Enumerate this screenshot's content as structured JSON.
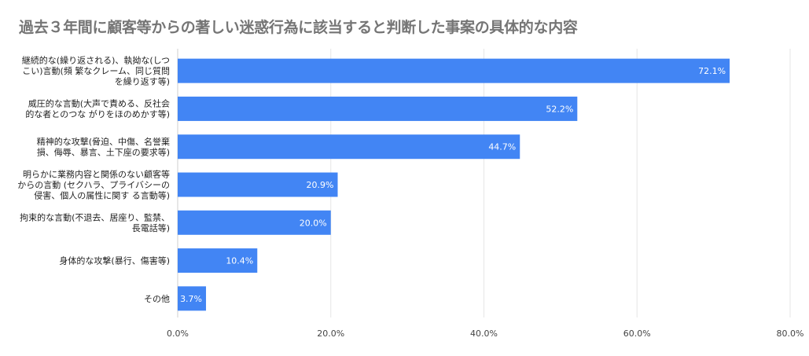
{
  "chart_data": {
    "type": "bar",
    "orientation": "horizontal",
    "title": "過去３年間に顧客等からの著しい迷惑行為に該当すると判断した事案の具体的な内容",
    "categories": [
      [
        "継続的な(繰り返される)、執拗な(しつ",
        "こい)言動(頻 繁なクレーム、同じ質問",
        "を繰り返す等)"
      ],
      [
        "威圧的な言動(大声で責める、反社会",
        "的な者とのつな がりをほのめかす等)"
      ],
      [
        "精神的な攻撃(脅迫、中傷、名誉棄",
        "損、侮辱、暴言、土下座の要求等)"
      ],
      [
        "明らかに業務内容と関係のない顧客等",
        "からの言動 (セクハラ、プライバシーの",
        "侵害、個人の属性に関す る言動等)"
      ],
      [
        "拘束的な言動(不退去、居座り、監禁、",
        "長電話等)"
      ],
      [
        "身体的な攻撃(暴行、傷害等)"
      ],
      [
        "その他"
      ]
    ],
    "values": [
      72.1,
      52.2,
      44.7,
      20.9,
      20.0,
      10.4,
      3.7
    ],
    "value_labels": [
      "72.1%",
      "52.2%",
      "44.7%",
      "20.9%",
      "20.0%",
      "10.4%",
      "3.7%"
    ],
    "xlim": [
      0,
      80
    ],
    "xticks": [
      0,
      20,
      40,
      60,
      80
    ],
    "xtick_labels": [
      "0.0%",
      "20.0%",
      "40.0%",
      "60.0%",
      "80.0%"
    ],
    "grid": true,
    "legend": "none",
    "colors": {
      "bar": "#4285f4",
      "grid": "#e6e6e6",
      "axis": "#cfcfcf"
    }
  }
}
